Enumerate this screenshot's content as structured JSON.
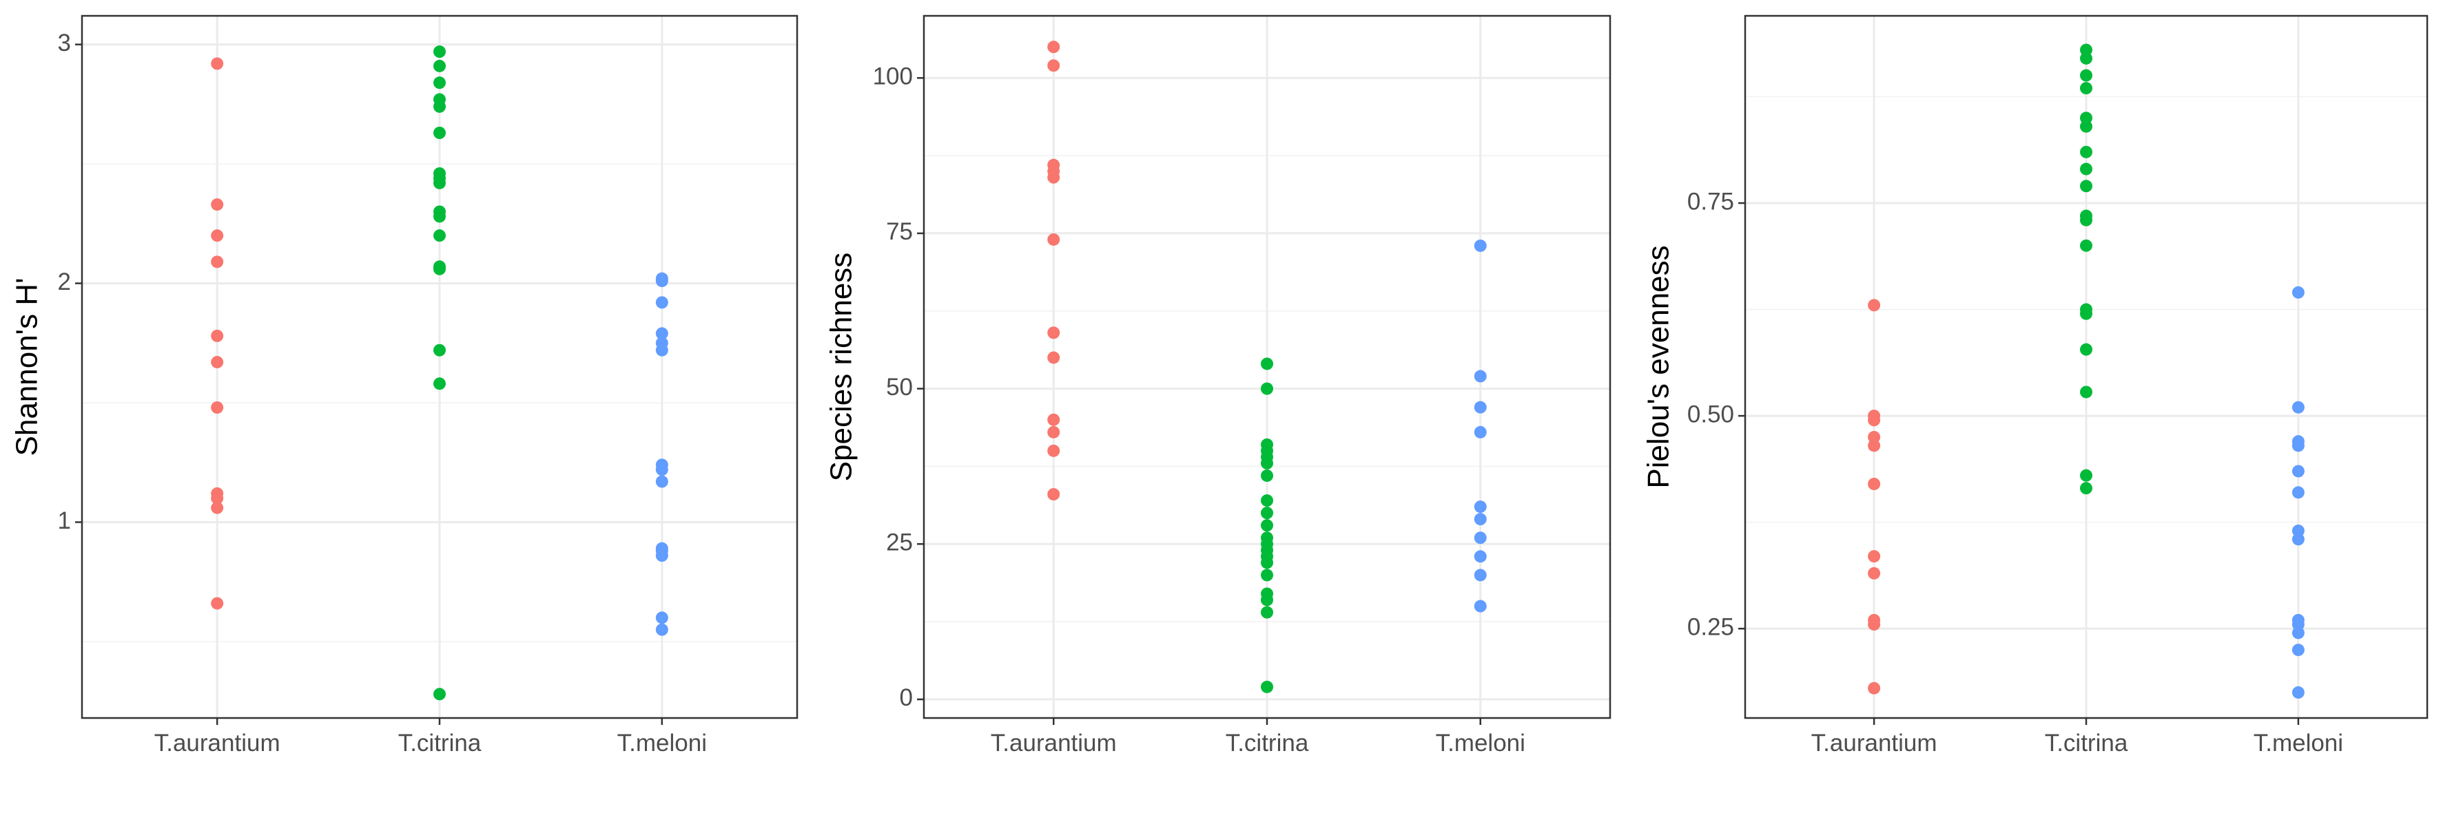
{
  "colors": {
    "T.aurantium": "#F8766D",
    "T.citrina": "#00BA38",
    "T.meloni": "#619CFF"
  },
  "chart_data": [
    {
      "type": "scatter",
      "ylabel": "Shannon's H'",
      "categories": [
        "T.aurantium",
        "T.citrina",
        "T.meloni"
      ],
      "ylim": [
        0.18,
        3.12
      ],
      "yticks": [
        1,
        2,
        3
      ],
      "yminor": [
        0.5,
        1.5,
        2.5
      ],
      "grid": true,
      "legend": "none",
      "series": [
        {
          "values": [
            2.92,
            2.33,
            2.2,
            2.09,
            1.78,
            1.67,
            1.48,
            1.12,
            1.1,
            1.06,
            0.66
          ]
        },
        {
          "values": [
            2.97,
            2.91,
            2.84,
            2.77,
            2.74,
            2.63,
            2.46,
            2.44,
            2.42,
            2.3,
            2.28,
            2.2,
            2.07,
            2.06,
            1.72,
            1.58,
            0.28
          ]
        },
        {
          "values": [
            2.02,
            2.01,
            1.92,
            1.79,
            1.75,
            1.72,
            1.24,
            1.22,
            1.17,
            0.89,
            0.88,
            0.86,
            0.6,
            0.55
          ]
        }
      ]
    },
    {
      "type": "scatter",
      "ylabel": "Species richness",
      "categories": [
        "T.aurantium",
        "T.citrina",
        "T.meloni"
      ],
      "ylim": [
        -3,
        110
      ],
      "yticks": [
        0,
        25,
        50,
        75,
        100
      ],
      "yminor": [
        12.5,
        37.5,
        62.5,
        87.5
      ],
      "grid": true,
      "legend": "none",
      "series": [
        {
          "values": [
            105,
            102,
            86,
            85,
            84,
            74,
            59,
            55,
            45,
            43,
            40,
            33
          ]
        },
        {
          "values": [
            54,
            50,
            41,
            40,
            39,
            38,
            36,
            32,
            30,
            28,
            26,
            25,
            24,
            23,
            22,
            20,
            17,
            16,
            14,
            2
          ]
        },
        {
          "values": [
            73,
            52,
            47,
            43,
            31,
            29,
            26,
            23,
            20,
            15
          ]
        }
      ]
    },
    {
      "type": "scatter",
      "ylabel": "Pielou's evenness",
      "categories": [
        "T.aurantium",
        "T.citrina",
        "T.meloni"
      ],
      "ylim": [
        0.145,
        0.97
      ],
      "yticks": [
        0.25,
        0.5,
        0.75
      ],
      "yminor": [
        0.375,
        0.625,
        0.875
      ],
      "grid": true,
      "legend": "none",
      "series": [
        {
          "values": [
            0.63,
            0.5,
            0.495,
            0.475,
            0.465,
            0.42,
            0.335,
            0.315,
            0.26,
            0.255,
            0.18
          ]
        },
        {
          "values": [
            0.93,
            0.92,
            0.9,
            0.885,
            0.85,
            0.84,
            0.81,
            0.79,
            0.77,
            0.735,
            0.73,
            0.7,
            0.625,
            0.62,
            0.578,
            0.528,
            0.43,
            0.415
          ]
        },
        {
          "values": [
            0.645,
            0.51,
            0.47,
            0.465,
            0.435,
            0.41,
            0.365,
            0.355,
            0.26,
            0.255,
            0.245,
            0.225,
            0.175
          ]
        }
      ]
    }
  ]
}
